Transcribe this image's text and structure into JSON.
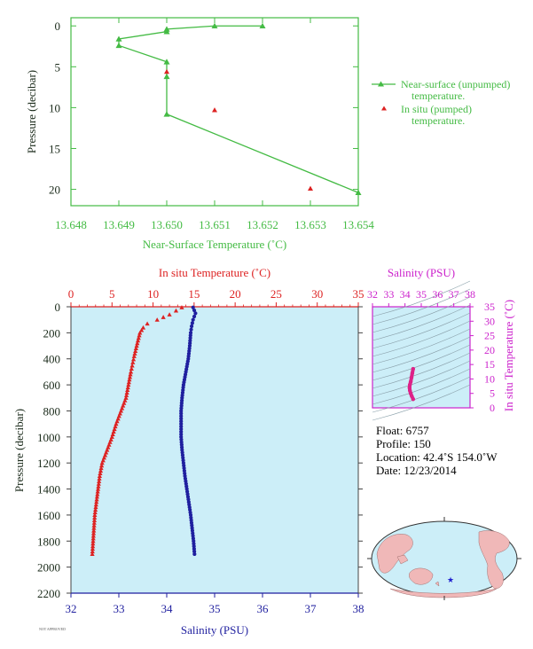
{
  "chart_data": [
    {
      "type": "line",
      "name": "near-surface",
      "xlabel": "Near-Surface Temperature (˚C)",
      "ylabel": "Pressure (decibar)",
      "xlim": [
        13.648,
        13.654
      ],
      "ylim": [
        22,
        -1
      ],
      "x_ticks": [
        "13.648",
        "13.649",
        "13.650",
        "13.651",
        "13.652",
        "13.653",
        "13.654"
      ],
      "y_ticks": [
        "0",
        "5",
        "10",
        "15",
        "20"
      ],
      "series": [
        {
          "name": "Near-surface (unpumped) temperature.",
          "marker": "triangle-line",
          "color": "#44bb44",
          "x": [
            13.652,
            13.651,
            13.65,
            13.65,
            13.649,
            13.649,
            13.65,
            13.65,
            13.65,
            13.654
          ],
          "y": [
            0.0,
            0.0,
            0.4,
            0.7,
            1.6,
            2.4,
            4.4,
            6.2,
            10.8,
            20.4
          ]
        },
        {
          "name": "In situ (pumped) temperature.",
          "marker": "triangle",
          "color": "#dd2222",
          "x": [
            13.65,
            13.651,
            13.653
          ],
          "y": [
            5.6,
            10.3,
            19.9
          ]
        }
      ],
      "legend": {
        "position": "right",
        "entries": [
          {
            "line1": "Near-surface (unpumped)",
            "line2": "temperature."
          },
          {
            "line1": "In situ (pumped)",
            "line2": "temperature."
          }
        ]
      }
    },
    {
      "type": "line",
      "name": "profile",
      "ylabel": "Pressure (decibar)",
      "top_xlabel": "In situ Temperature (˚C)",
      "bottom_xlabel": "Salinity (PSU)",
      "temp_lim": [
        0,
        35
      ],
      "sal_lim": [
        32,
        38
      ],
      "ylim": [
        2200,
        0
      ],
      "temp_ticks": [
        "0",
        "5",
        "10",
        "15",
        "20",
        "25",
        "30",
        "35"
      ],
      "sal_ticks": [
        "32",
        "33",
        "34",
        "35",
        "36",
        "37",
        "38"
      ],
      "y_ticks": [
        "0",
        "200",
        "400",
        "600",
        "800",
        "1000",
        "1200",
        "1400",
        "1600",
        "1800",
        "2000",
        "2200"
      ],
      "temperature": {
        "name": "In situ Temperature (˚C)",
        "color": "#dd2222",
        "p": [
          5,
          30,
          60,
          100,
          130,
          160,
          200,
          300,
          380,
          500,
          600,
          700,
          800,
          900,
          1000,
          1100,
          1200,
          1300,
          1400,
          1500,
          1600,
          1700,
          1800,
          1900
        ],
        "t": [
          13.5,
          12.8,
          12.0,
          10.5,
          9.3,
          8.8,
          8.4,
          8.0,
          7.7,
          7.3,
          7.0,
          6.7,
          6.1,
          5.5,
          5.0,
          4.4,
          3.8,
          3.5,
          3.3,
          3.1,
          2.9,
          2.8,
          2.7,
          2.6
        ]
      },
      "salinity": {
        "name": "Salinity (PSU)",
        "color": "#1f1f9f",
        "p": [
          5,
          50,
          100,
          150,
          200,
          300,
          400,
          500,
          600,
          700,
          800,
          900,
          1000,
          1100,
          1200,
          1300,
          1400,
          1500,
          1600,
          1700,
          1800,
          1900
        ],
        "s": [
          34.55,
          34.6,
          34.55,
          34.52,
          34.5,
          34.48,
          34.45,
          34.4,
          34.35,
          34.32,
          34.3,
          34.3,
          34.3,
          34.32,
          34.35,
          34.38,
          34.42,
          34.46,
          34.5,
          34.53,
          34.56,
          34.58
        ]
      }
    },
    {
      "type": "scatter",
      "name": "ts-diagram",
      "xlabel": "Salinity (PSU)",
      "ylabel": "In situ Temperature (˚C)",
      "xlim": [
        32,
        38
      ],
      "ylim": [
        0,
        35
      ],
      "x_ticks": [
        "32",
        "33",
        "34",
        "35",
        "36",
        "37",
        "38"
      ],
      "y_ticks": [
        "0",
        "5",
        "10",
        "15",
        "20",
        "25",
        "30",
        "35"
      ],
      "color": "#dd2288",
      "s": [
        34.5,
        34.45,
        34.4,
        34.35,
        34.3,
        34.28,
        34.3,
        34.35,
        34.42,
        34.5
      ],
      "t": [
        13.5,
        12.0,
        10.5,
        9.0,
        8.0,
        7.0,
        6.0,
        5.0,
        4.0,
        3.0
      ]
    }
  ],
  "info": {
    "float": "Float:  6757",
    "profile": "Profile:  150",
    "location": "Location:  42.4˚S  154.0˚W",
    "date": "Date:  12/23/2014"
  },
  "footer": "NOT APPROVED"
}
